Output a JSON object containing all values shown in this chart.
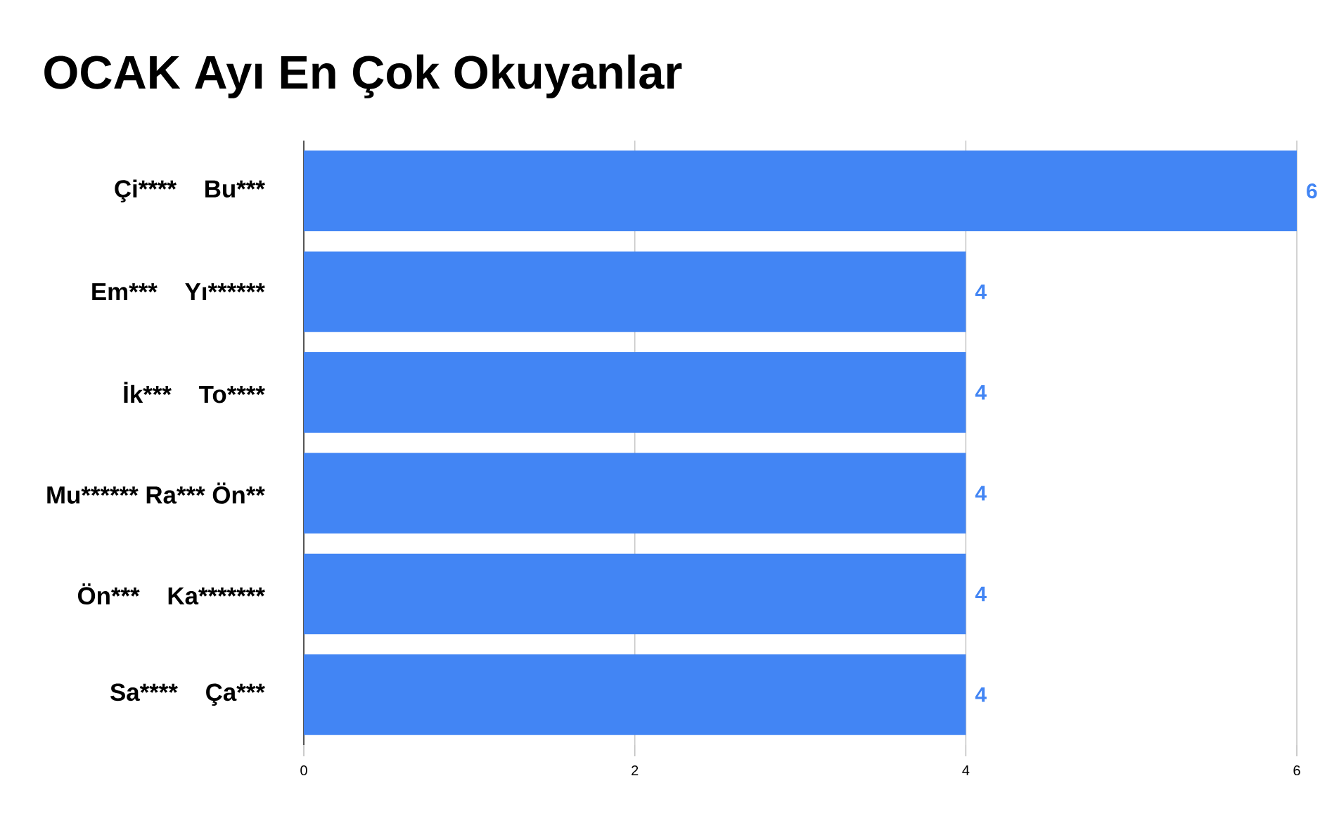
{
  "chart_data": {
    "type": "bar",
    "orientation": "horizontal",
    "title": "OCAK Ayı En Çok Okuyanlar",
    "categories": [
      "Çi****    Bu***",
      "Em***    Yı******",
      "İk***    To****",
      "Mu****** Ra*** Ön**",
      "Ön***    Ka*******",
      "Sa****    Ça***"
    ],
    "values": [
      6,
      4,
      4,
      4,
      4,
      4
    ],
    "color": "#4285f4",
    "xlim": [
      0,
      6
    ],
    "xticks": [
      0,
      2,
      4,
      6
    ],
    "grid": "x",
    "data_labels": true
  }
}
